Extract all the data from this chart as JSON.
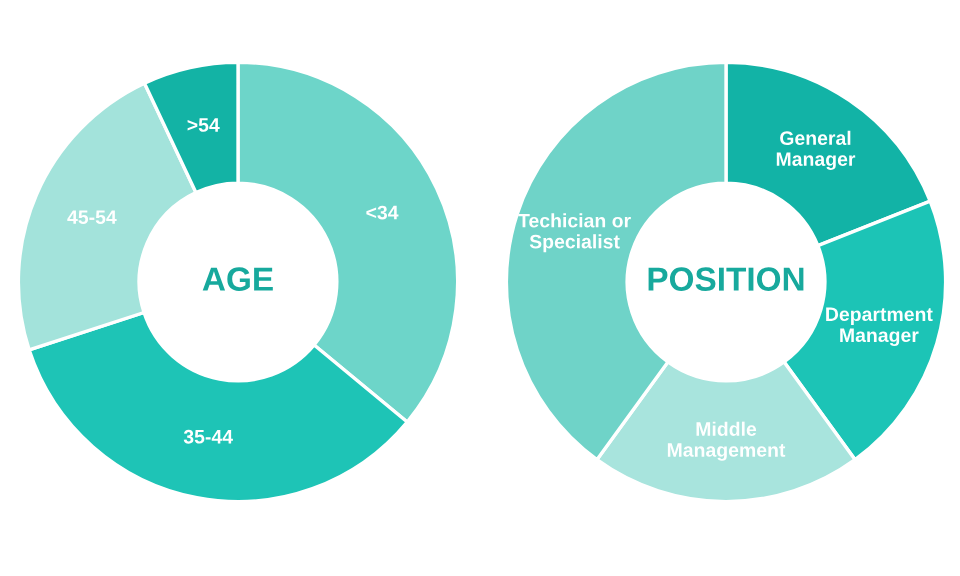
{
  "chart_data": [
    {
      "type": "donut",
      "title": "AGE",
      "categories": [
        "<34",
        "35-44",
        "45-54",
        ">54"
      ],
      "values": [
        36,
        34,
        23,
        7
      ],
      "colors": [
        "#6dd5c9",
        "#1ec4b6",
        "#a3e3db",
        "#13b3a5"
      ]
    },
    {
      "type": "donut",
      "title": "POSITION",
      "categories": [
        "General\nManager",
        "Department\nManager",
        "Middle\nManagement",
        "Techician or\nSpecialist"
      ],
      "values": [
        19,
        21,
        20,
        40
      ],
      "colors": [
        "#12b3a6",
        "#1cc4b6",
        "#a8e4dd",
        "#6fd3c8"
      ]
    }
  ]
}
